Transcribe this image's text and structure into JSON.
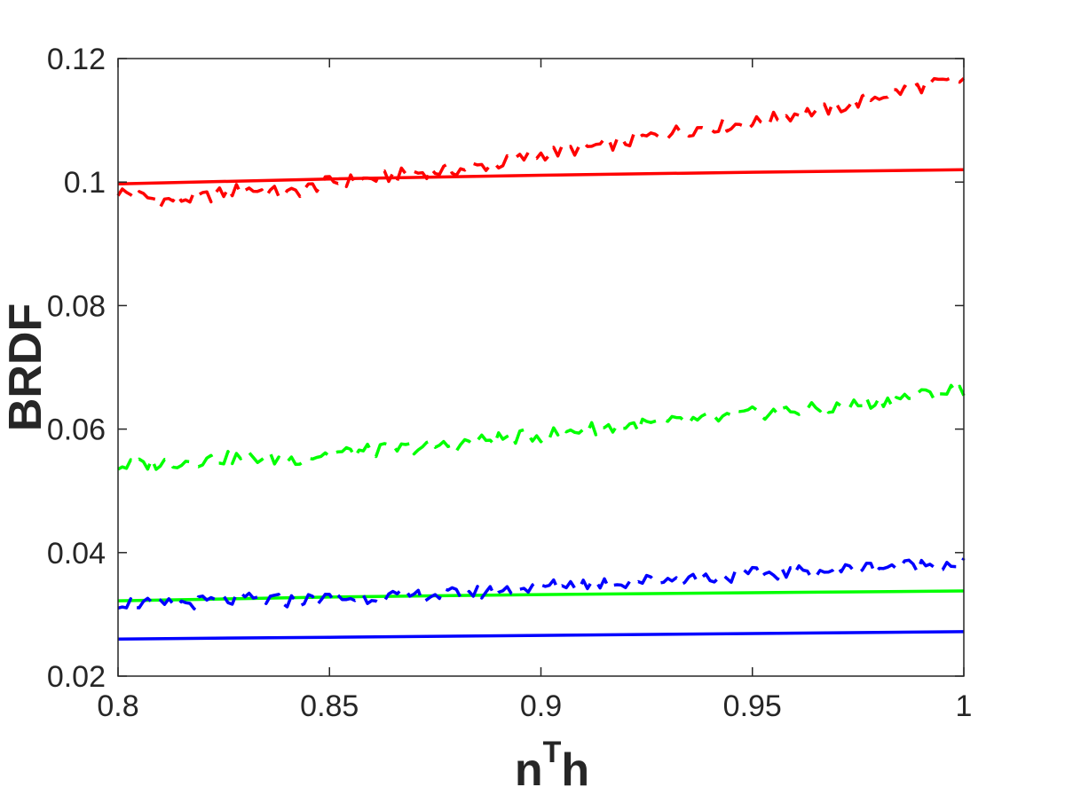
{
  "chart_data": {
    "type": "line",
    "title": "",
    "xlabel": {
      "base": "n",
      "sup": "T",
      "tail": "h"
    },
    "ylabel": "BRDF",
    "xlim": [
      0.8,
      1.0
    ],
    "ylim": [
      0.02,
      0.12
    ],
    "xticks": [
      0.8,
      0.85,
      0.9,
      0.95,
      1.0
    ],
    "xtick_labels": [
      "0.8",
      "0.85",
      "0.9",
      "0.95",
      "1"
    ],
    "yticks": [
      0.02,
      0.04,
      0.06,
      0.08,
      0.1,
      0.12
    ],
    "ytick_labels": [
      "0.02",
      "0.04",
      "0.06",
      "0.08",
      "0.1",
      "0.12"
    ],
    "grid": false,
    "legend": "none",
    "series": [
      {
        "color": "#ff0000",
        "style": "solid",
        "x": [
          0.8,
          0.85,
          0.9,
          0.95,
          1.0
        ],
        "y": [
          0.0997,
          0.1005,
          0.1011,
          0.1016,
          0.102
        ]
      },
      {
        "color": "#ff0000",
        "style": "dashed",
        "x": [
          0.8,
          0.81,
          0.82,
          0.83,
          0.84,
          0.85,
          0.86,
          0.87,
          0.88,
          0.89,
          0.9,
          0.91,
          0.92,
          0.93,
          0.94,
          0.95,
          0.96,
          0.97,
          0.98,
          0.99,
          1.0
        ],
        "y": [
          0.0985,
          0.097,
          0.0975,
          0.099,
          0.098,
          0.1,
          0.1005,
          0.1015,
          0.102,
          0.103,
          0.1045,
          0.1055,
          0.1065,
          0.108,
          0.109,
          0.1095,
          0.111,
          0.112,
          0.114,
          0.1155,
          0.1165
        ]
      },
      {
        "color": "#00ff00",
        "style": "solid",
        "x": [
          0.8,
          0.85,
          0.9,
          0.95,
          1.0
        ],
        "y": [
          0.0322,
          0.0328,
          0.0332,
          0.0335,
          0.0338
        ]
      },
      {
        "color": "#00ff00",
        "style": "dashed",
        "x": [
          0.8,
          0.81,
          0.82,
          0.83,
          0.84,
          0.85,
          0.86,
          0.87,
          0.88,
          0.89,
          0.9,
          0.91,
          0.92,
          0.93,
          0.94,
          0.95,
          0.96,
          0.97,
          0.98,
          0.99,
          1.0
        ],
        "y": [
          0.054,
          0.0545,
          0.055,
          0.0555,
          0.055,
          0.056,
          0.0565,
          0.057,
          0.0575,
          0.0585,
          0.059,
          0.06,
          0.0605,
          0.061,
          0.0615,
          0.0625,
          0.063,
          0.0635,
          0.0645,
          0.0655,
          0.0665
        ]
      },
      {
        "color": "#0000ff",
        "style": "solid",
        "x": [
          0.8,
          0.85,
          0.9,
          0.95,
          1.0
        ],
        "y": [
          0.026,
          0.0263,
          0.0266,
          0.0269,
          0.0272
        ]
      },
      {
        "color": "#0000ff",
        "style": "dashed",
        "x": [
          0.8,
          0.81,
          0.82,
          0.83,
          0.84,
          0.85,
          0.86,
          0.87,
          0.88,
          0.89,
          0.9,
          0.91,
          0.92,
          0.93,
          0.94,
          0.95,
          0.96,
          0.97,
          0.98,
          0.99,
          1.0
        ],
        "y": [
          0.032,
          0.0315,
          0.032,
          0.0325,
          0.0322,
          0.0325,
          0.0328,
          0.033,
          0.0333,
          0.0338,
          0.0345,
          0.035,
          0.0352,
          0.0357,
          0.036,
          0.0365,
          0.0368,
          0.0372,
          0.0377,
          0.038,
          0.0383
        ]
      }
    ]
  }
}
